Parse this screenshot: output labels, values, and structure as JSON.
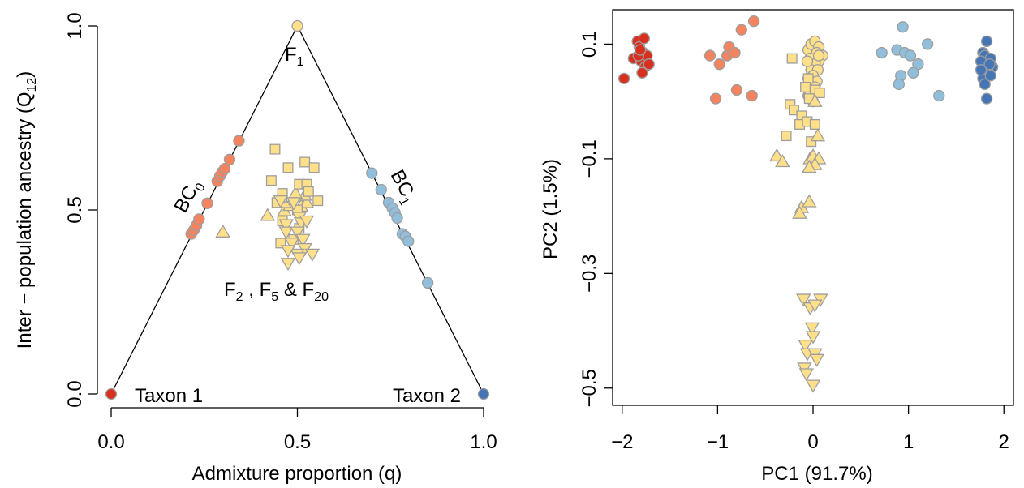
{
  "chart_data": [
    {
      "type": "scatter",
      "title": "",
      "xlabel": "Admixture proportion (q)",
      "ylabel": {
        "main": "Inter − population ancestry (Q",
        "sub": "12",
        "tail": ")"
      },
      "xlim": [
        0,
        1
      ],
      "ylim": [
        0,
        1
      ],
      "xticks": [
        "0.0",
        "0.5",
        "1.0"
      ],
      "yticks": [
        "0.0",
        "0.5",
        "1.0"
      ],
      "triangle_lines": [
        [
          [
            0,
            0
          ],
          [
            0.5,
            1
          ],
          [
            1,
            0
          ]
        ]
      ],
      "annotations": {
        "taxon1": "Taxon 1",
        "taxon2": "Taxon 2",
        "f1": {
          "main": "F",
          "sub": "1"
        },
        "bc0": {
          "main": "BC",
          "sub": "0"
        },
        "bc1": {
          "main": "BC",
          "sub": "1"
        },
        "hybrids": {
          "f2": "F",
          "f2sub": "2",
          "sep1": " , ",
          "f5": "F",
          "f5sub": "5",
          "amp": " & ",
          "f20": "F",
          "f20sub": "20"
        }
      },
      "series": [
        {
          "name": "Taxon 1",
          "marker": "circle",
          "color": "#d7301f",
          "points": [
            [
              0,
              0
            ]
          ]
        },
        {
          "name": "Taxon 2",
          "marker": "circle",
          "color": "#4575b4",
          "points": [
            [
              1,
              0
            ]
          ]
        },
        {
          "name": "F1",
          "marker": "circle",
          "color": "#fee08b",
          "points": [
            [
              0.5,
              1
            ]
          ]
        },
        {
          "name": "BC0",
          "marker": "circle",
          "color": "#f4845f",
          "points": [
            [
              0.215,
              0.435
            ],
            [
              0.222,
              0.445
            ],
            [
              0.229,
              0.458
            ],
            [
              0.236,
              0.475
            ],
            [
              0.258,
              0.518
            ],
            [
              0.285,
              0.578
            ],
            [
              0.292,
              0.592
            ],
            [
              0.298,
              0.603
            ],
            [
              0.305,
              0.612
            ],
            [
              0.318,
              0.637
            ],
            [
              0.343,
              0.688
            ]
          ]
        },
        {
          "name": "BC1",
          "marker": "circle",
          "color": "#91bfdb",
          "points": [
            [
              0.7,
              0.6
            ],
            [
              0.725,
              0.555
            ],
            [
              0.745,
              0.52
            ],
            [
              0.755,
              0.505
            ],
            [
              0.762,
              0.492
            ],
            [
              0.768,
              0.478
            ],
            [
              0.782,
              0.435
            ],
            [
              0.79,
              0.428
            ],
            [
              0.798,
              0.415
            ],
            [
              0.85,
              0.302
            ]
          ]
        },
        {
          "name": "F2",
          "marker": "triangle-up",
          "color": "#fee08b",
          "points": [
            [
              0.3,
              0.44
            ],
            [
              0.42,
              0.485
            ],
            [
              0.465,
              0.498
            ],
            [
              0.48,
              0.512
            ],
            [
              0.51,
              0.51
            ],
            [
              0.465,
              0.52
            ],
            [
              0.525,
              0.52
            ],
            [
              0.455,
              0.535
            ],
            [
              0.52,
              0.54
            ],
            [
              0.495,
              0.545
            ]
          ]
        },
        {
          "name": "F5",
          "marker": "square",
          "color": "#fee08b",
          "points": [
            [
              0.44,
              0.665
            ],
            [
              0.52,
              0.63
            ],
            [
              0.475,
              0.615
            ],
            [
              0.545,
              0.615
            ],
            [
              0.43,
              0.58
            ],
            [
              0.505,
              0.57
            ],
            [
              0.525,
              0.57
            ],
            [
              0.46,
              0.545
            ],
            [
              0.53,
              0.55
            ],
            [
              0.555,
              0.525
            ],
            [
              0.445,
              0.52
            ],
            [
              0.5,
              0.5
            ],
            [
              0.46,
              0.47
            ],
            [
              0.505,
              0.45
            ],
            [
              0.455,
              0.41
            ],
            [
              0.49,
              0.42
            ]
          ]
        },
        {
          "name": "F20",
          "marker": "triangle-down",
          "color": "#fee08b",
          "points": [
            [
              0.455,
              0.525
            ],
            [
              0.49,
              0.52
            ],
            [
              0.47,
              0.46
            ],
            [
              0.47,
              0.44
            ],
            [
              0.505,
              0.48
            ],
            [
              0.51,
              0.465
            ],
            [
              0.525,
              0.47
            ],
            [
              0.5,
              0.44
            ],
            [
              0.515,
              0.42
            ],
            [
              0.485,
              0.41
            ],
            [
              0.52,
              0.395
            ],
            [
              0.5,
              0.38
            ],
            [
              0.475,
              0.39
            ],
            [
              0.54,
              0.38
            ],
            [
              0.505,
              0.37
            ],
            [
              0.475,
              0.355
            ]
          ]
        }
      ]
    },
    {
      "type": "scatter",
      "title": "",
      "xlabel": "PC1 (91.7%)",
      "ylabel": "PC2 (1.5%)",
      "xlim": [
        -2.1,
        2.1
      ],
      "ylim": [
        -0.53,
        0.16
      ],
      "xticks": [
        -2,
        -1,
        0,
        1,
        2
      ],
      "yticks": [
        -0.5,
        -0.3,
        -0.1,
        0.1
      ],
      "tick_labels_x": [
        "−2",
        "−1",
        "0",
        "1",
        "2"
      ],
      "tick_labels_y": [
        "−0.5",
        "−0.3",
        "−0.1",
        "0.1"
      ],
      "series": [
        {
          "name": "Taxon 1",
          "marker": "circle",
          "color": "#d7301f",
          "points": [
            [
              -1.98,
              0.04
            ],
            [
              -1.88,
              0.075
            ],
            [
              -1.84,
              0.105
            ],
            [
              -1.82,
              0.095
            ],
            [
              -1.8,
              0.07
            ],
            [
              -1.77,
              0.11
            ],
            [
              -1.76,
              0.06
            ],
            [
              -1.78,
              0.085
            ],
            [
              -1.74,
              0.08
            ],
            [
              -1.72,
              0.065
            ],
            [
              -1.79,
              0.05
            ],
            [
              -1.83,
              0.08
            ],
            [
              -1.81,
              0.09
            ]
          ]
        },
        {
          "name": "BC0",
          "marker": "circle",
          "color": "#f4845f",
          "points": [
            [
              -1.08,
              0.08
            ],
            [
              -0.98,
              0.065
            ],
            [
              -0.9,
              0.08
            ],
            [
              -0.88,
              0.095
            ],
            [
              -0.82,
              0.085
            ],
            [
              -0.75,
              0.125
            ],
            [
              -0.62,
              0.14
            ],
            [
              -1.02,
              0.005
            ],
            [
              -0.8,
              0.02
            ],
            [
              -0.64,
              0.01
            ]
          ]
        },
        {
          "name": "BC1",
          "marker": "circle",
          "color": "#91bfdb",
          "points": [
            [
              0.72,
              0.085
            ],
            [
              0.88,
              0.09
            ],
            [
              0.94,
              0.13
            ],
            [
              0.96,
              0.085
            ],
            [
              1.02,
              0.08
            ],
            [
              1.1,
              0.065
            ],
            [
              1.2,
              0.1
            ],
            [
              0.92,
              0.045
            ],
            [
              1.05,
              0.05
            ],
            [
              0.9,
              0.03
            ],
            [
              1.32,
              0.01
            ]
          ]
        },
        {
          "name": "Taxon 2",
          "marker": "circle",
          "color": "#4575b4",
          "points": [
            [
              1.78,
              0.085
            ],
            [
              1.82,
              0.105
            ],
            [
              1.8,
              0.08
            ],
            [
              1.86,
              0.075
            ],
            [
              1.88,
              0.06
            ],
            [
              1.76,
              0.07
            ],
            [
              1.84,
              0.05
            ],
            [
              1.78,
              0.04
            ],
            [
              1.8,
              0.03
            ],
            [
              1.86,
              0.045
            ],
            [
              1.82,
              0.005
            ],
            [
              1.76,
              0.055
            ],
            [
              1.85,
              0.065
            ]
          ]
        },
        {
          "name": "F1",
          "marker": "circle",
          "color": "#fee08b",
          "points": [
            [
              -0.05,
              0.09
            ],
            [
              -0.02,
              0.1
            ],
            [
              0.02,
              0.105
            ],
            [
              0.06,
              0.095
            ],
            [
              0.1,
              0.08
            ],
            [
              0.04,
              0.085
            ],
            [
              -0.03,
              0.075
            ],
            [
              0.06,
              0.07
            ],
            [
              0.02,
              0.065
            ],
            [
              -0.02,
              0.055
            ],
            [
              0.05,
              0.055
            ],
            [
              0.0,
              0.045
            ],
            [
              -0.05,
              0.04
            ],
            [
              0.04,
              0.035
            ],
            [
              0.02,
              0.025
            ],
            [
              -0.03,
              0.02
            ],
            [
              -0.05,
              0.01
            ],
            [
              0.0,
              0.0
            ],
            [
              -0.04,
              0.01
            ],
            [
              0.06,
              0.08
            ],
            [
              -0.06,
              0.07
            ]
          ]
        },
        {
          "name": "F5",
          "marker": "square",
          "color": "#fee08b",
          "points": [
            [
              -0.22,
              0.075
            ],
            [
              -0.05,
              0.04
            ],
            [
              -0.08,
              0.025
            ],
            [
              0.02,
              0.02
            ],
            [
              0.07,
              0.015
            ],
            [
              -0.04,
              0.005
            ],
            [
              -0.24,
              -0.005
            ],
            [
              -0.2,
              -0.015
            ],
            [
              -0.12,
              -0.025
            ],
            [
              -0.14,
              -0.04
            ],
            [
              -0.06,
              -0.035
            ],
            [
              0.02,
              -0.04
            ],
            [
              -0.28,
              -0.06
            ],
            [
              -0.02,
              -0.07
            ]
          ]
        },
        {
          "name": "F2",
          "marker": "triangle-up",
          "color": "#fee08b",
          "points": [
            [
              0.02,
              0.0
            ],
            [
              -0.38,
              -0.095
            ],
            [
              -0.32,
              -0.105
            ],
            [
              0.05,
              -0.06
            ],
            [
              -0.03,
              -0.1
            ],
            [
              0.0,
              -0.095
            ],
            [
              0.06,
              -0.1
            ],
            [
              0.02,
              -0.11
            ],
            [
              -0.04,
              -0.115
            ],
            [
              -0.12,
              -0.185
            ],
            [
              -0.14,
              -0.195
            ],
            [
              -0.04,
              -0.175
            ]
          ]
        },
        {
          "name": "F20",
          "marker": "triangle-down",
          "color": "#fee08b",
          "points": [
            [
              -0.1,
              -0.345
            ],
            [
              0.08,
              -0.345
            ],
            [
              -0.03,
              -0.36
            ],
            [
              0.02,
              -0.355
            ],
            [
              -0.01,
              -0.395
            ],
            [
              0.0,
              -0.41
            ],
            [
              -0.08,
              -0.425
            ],
            [
              -0.06,
              -0.44
            ],
            [
              0.02,
              -0.44
            ],
            [
              0.04,
              -0.45
            ],
            [
              -0.09,
              -0.465
            ],
            [
              -0.07,
              -0.475
            ],
            [
              0.0,
              -0.495
            ]
          ]
        }
      ]
    }
  ]
}
